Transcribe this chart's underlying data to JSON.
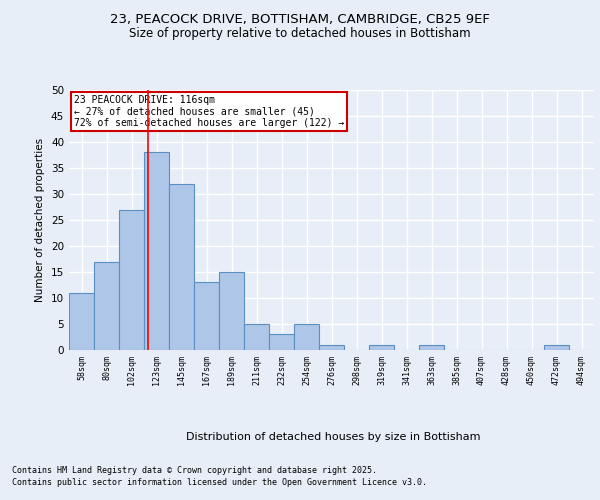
{
  "title_line1": "23, PEACOCK DRIVE, BOTTISHAM, CAMBRIDGE, CB25 9EF",
  "title_line2": "Size of property relative to detached houses in Bottisham",
  "xlabel": "Distribution of detached houses by size in Bottisham",
  "ylabel": "Number of detached properties",
  "categories": [
    "58sqm",
    "80sqm",
    "102sqm",
    "123sqm",
    "145sqm",
    "167sqm",
    "189sqm",
    "211sqm",
    "232sqm",
    "254sqm",
    "276sqm",
    "298sqm",
    "319sqm",
    "341sqm",
    "363sqm",
    "385sqm",
    "407sqm",
    "428sqm",
    "450sqm",
    "472sqm",
    "494sqm"
  ],
  "values": [
    11,
    17,
    27,
    38,
    32,
    13,
    15,
    5,
    3,
    5,
    1,
    0,
    1,
    0,
    1,
    0,
    0,
    0,
    0,
    1,
    0
  ],
  "bar_color": "#aec6e8",
  "bar_edge_color": "#5a8fc2",
  "background_color": "#e8eef7",
  "grid_color": "#ffffff",
  "red_line_x": 2.64,
  "annotation_text": "23 PEACOCK DRIVE: 116sqm\n← 27% of detached houses are smaller (45)\n72% of semi-detached houses are larger (122) →",
  "annotation_box_color": "#ffffff",
  "annotation_box_edge": "#cc0000",
  "footer_line1": "Contains HM Land Registry data © Crown copyright and database right 2025.",
  "footer_line2": "Contains public sector information licensed under the Open Government Licence v3.0.",
  "ylim": [
    0,
    50
  ],
  "yticks": [
    0,
    5,
    10,
    15,
    20,
    25,
    30,
    35,
    40,
    45,
    50
  ]
}
